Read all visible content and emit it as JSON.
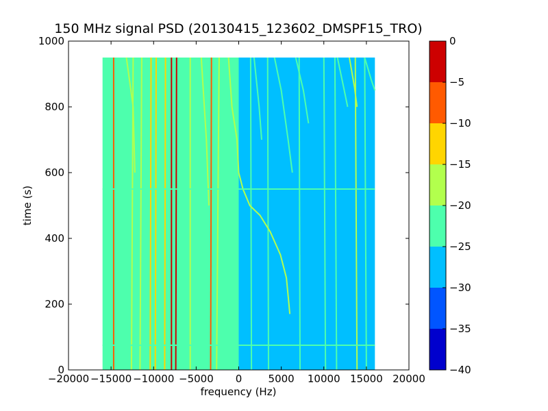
{
  "chart_data": {
    "type": "heatmap",
    "title": "150 MHz signal PSD (20130415_123602_DMSPF15_TRO)",
    "xlabel": "frequency (Hz)",
    "ylabel": "time (s)",
    "xlim": [
      -20000,
      20000
    ],
    "ylim": [
      0,
      1000
    ],
    "x_ticks": [
      -20000,
      -15000,
      -10000,
      -5000,
      0,
      5000,
      10000,
      15000,
      20000
    ],
    "y_ticks": [
      0,
      200,
      400,
      600,
      800,
      1000
    ],
    "data_extent": {
      "freq_min": -16000,
      "freq_max": 16000,
      "time_min": 0,
      "time_max": 950
    },
    "background_psd": {
      "negative_freq": -22.5,
      "positive_freq": -27.5
    },
    "colorbar": {
      "levels": [
        -40,
        -35,
        -30,
        -25,
        -20,
        -15,
        -10,
        -5,
        0
      ],
      "tick_labels": [
        "0",
        "−5",
        "−10",
        "−15",
        "−20",
        "−25",
        "−30",
        "−35",
        "−40"
      ],
      "colors": [
        "#0000cd",
        "#0055ff",
        "#00bfff",
        "#4dffad",
        "#b2ff4d",
        "#ffd500",
        "#ff5a00",
        "#cd0000"
      ]
    },
    "signal_lines": [
      {
        "name": "",
        "points": [
          [
            -14700,
            0
          ],
          [
            -14700,
            950
          ]
        ],
        "psd": -7.5
      },
      {
        "name": "",
        "points": [
          [
            -12600,
            0
          ],
          [
            -12400,
            950
          ]
        ],
        "psd": -17.5
      },
      {
        "name": "",
        "points": [
          [
            -11600,
            0
          ],
          [
            -11400,
            950
          ]
        ],
        "psd": -17.5
      },
      {
        "name": "",
        "points": [
          [
            -10400,
            0
          ],
          [
            -10300,
            950
          ]
        ],
        "psd": -12.5
      },
      {
        "name": "",
        "points": [
          [
            -9800,
            0
          ],
          [
            -9700,
            950
          ]
        ],
        "psd": -12.5
      },
      {
        "name": "",
        "points": [
          [
            -8700,
            0
          ],
          [
            -8600,
            950
          ]
        ],
        "psd": -12.5
      },
      {
        "name": "",
        "points": [
          [
            -7900,
            0
          ],
          [
            -7900,
            950
          ]
        ],
        "psd": -2.5
      },
      {
        "name": "",
        "points": [
          [
            -7400,
            0
          ],
          [
            -7300,
            950
          ]
        ],
        "psd": -2.5
      },
      {
        "name": "",
        "points": [
          [
            -5700,
            0
          ],
          [
            -5700,
            950
          ]
        ],
        "psd": -17.5
      },
      {
        "name": "",
        "points": [
          [
            -3300,
            0
          ],
          [
            -3200,
            950
          ]
        ],
        "psd": -7.5
      },
      {
        "name": "",
        "points": [
          [
            -2600,
            0
          ],
          [
            -2300,
            950
          ]
        ],
        "psd": -17.5
      },
      {
        "name": "",
        "points": [
          [
            1500,
            0
          ],
          [
            1400,
            950
          ]
        ],
        "psd": -22.5
      },
      {
        "name": "",
        "points": [
          [
            3500,
            0
          ],
          [
            3400,
            950
          ]
        ],
        "psd": -22.5
      },
      {
        "name": "",
        "points": [
          [
            7200,
            0
          ],
          [
            7100,
            950
          ]
        ],
        "psd": -22.5
      },
      {
        "name": "",
        "points": [
          [
            10200,
            0
          ],
          [
            10000,
            950
          ]
        ],
        "psd": -22.5
      },
      {
        "name": "",
        "points": [
          [
            11500,
            0
          ],
          [
            11300,
            950
          ]
        ],
        "psd": -22.5
      },
      {
        "name": "",
        "points": [
          [
            13900,
            0
          ],
          [
            13700,
            950
          ]
        ],
        "psd": -17.5
      },
      {
        "name": "",
        "points": [
          [
            15000,
            0
          ],
          [
            14800,
            950
          ]
        ],
        "psd": -22.5
      },
      {
        "name": "",
        "points": [
          [
            -1200,
            950
          ],
          [
            -800,
            800
          ],
          [
            -200,
            700
          ],
          [
            0,
            600
          ],
          [
            500,
            550
          ],
          [
            1300,
            500
          ],
          [
            2500,
            470
          ],
          [
            3700,
            420
          ],
          [
            4900,
            350
          ],
          [
            5600,
            280
          ],
          [
            5900,
            200
          ],
          [
            6000,
            170
          ]
        ],
        "psd": -17.5
      },
      {
        "name": "",
        "points": [
          [
            -13200,
            950
          ],
          [
            -12400,
            800
          ],
          [
            -12200,
            600
          ]
        ],
        "psd": -17.5
      },
      {
        "name": "",
        "points": [
          [
            -4400,
            950
          ],
          [
            -3800,
            700
          ],
          [
            -3500,
            500
          ]
        ],
        "psd": -17.5
      },
      {
        "name": "",
        "points": [
          [
            1800,
            950
          ],
          [
            2400,
            800
          ],
          [
            2700,
            700
          ]
        ],
        "psd": -22.5
      },
      {
        "name": "",
        "points": [
          [
            4200,
            950
          ],
          [
            5000,
            850
          ],
          [
            5800,
            700
          ],
          [
            6300,
            600
          ]
        ],
        "psd": -22.5
      },
      {
        "name": "",
        "points": [
          [
            6700,
            950
          ],
          [
            7600,
            850
          ],
          [
            8200,
            750
          ]
        ],
        "psd": -22.5
      },
      {
        "name": "",
        "points": [
          [
            11600,
            950
          ],
          [
            12400,
            850
          ],
          [
            12800,
            800
          ]
        ],
        "psd": -22.5
      },
      {
        "name": "",
        "points": [
          [
            13000,
            950
          ],
          [
            13600,
            860
          ],
          [
            13900,
            800
          ]
        ],
        "psd": -17.5
      },
      {
        "name": "",
        "points": [
          [
            14800,
            950
          ],
          [
            15600,
            880
          ],
          [
            16000,
            850
          ]
        ],
        "psd": -22.5
      },
      {
        "name": "",
        "points": [
          [
            -16000,
            550
          ],
          [
            16000,
            550
          ]
        ],
        "psd": -22.5
      },
      {
        "name": "",
        "points": [
          [
            -16000,
            75
          ],
          [
            16000,
            75
          ]
        ],
        "psd": -22.5
      }
    ]
  }
}
